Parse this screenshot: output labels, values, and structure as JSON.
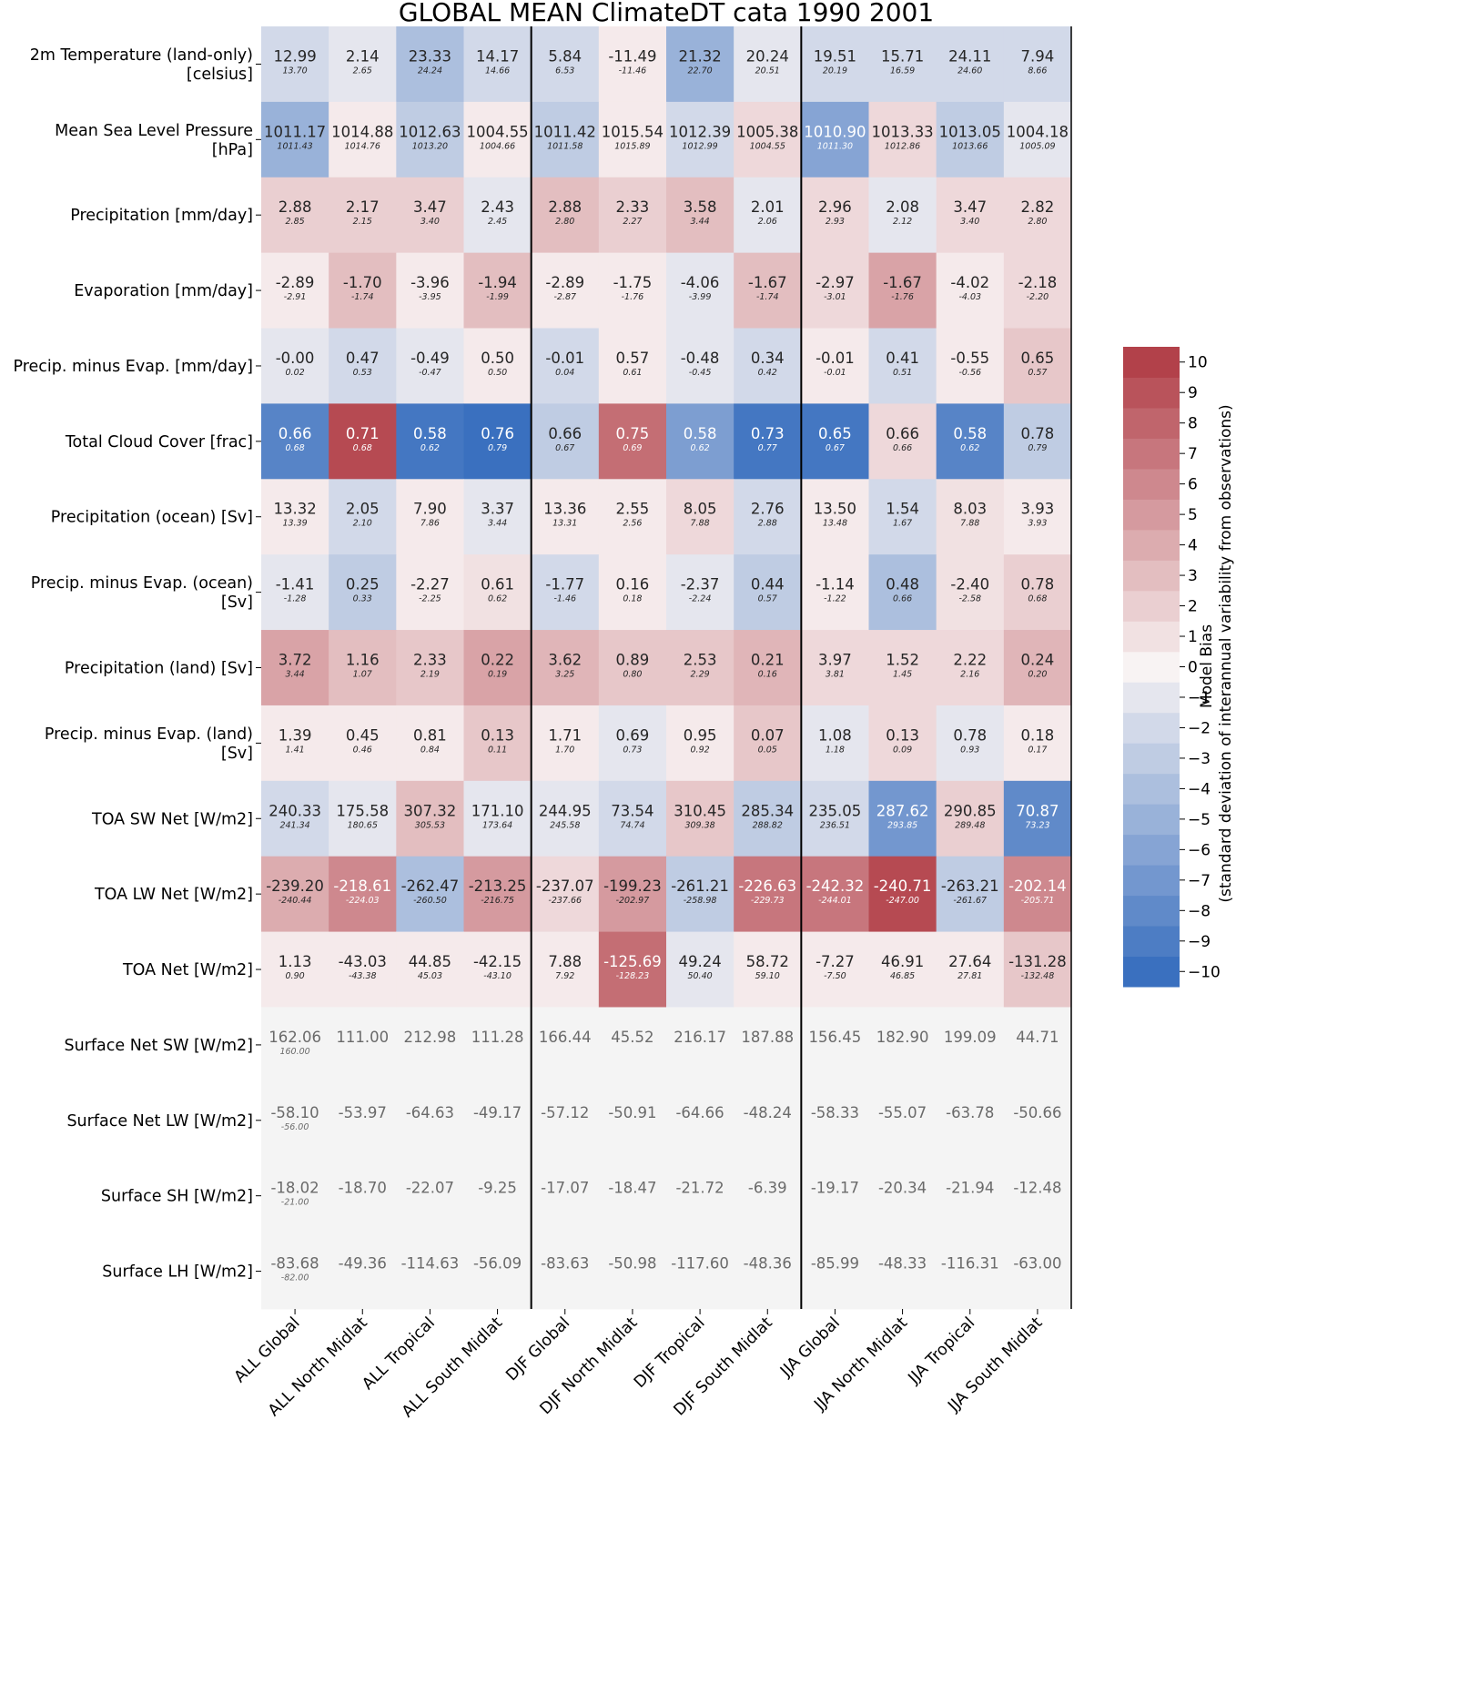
{
  "chart_data": {
    "type": "heatmap",
    "title": "GLOBAL MEAN ClimateDT cata 1990 2001",
    "columns": [
      "ALL Global",
      "ALL North Midlat",
      "ALL Tropical",
      "ALL South Midlat",
      "DJF Global",
      "DJF North Midlat",
      "DJF Tropical",
      "DJF South Midlat",
      "JJA Global",
      "JJA North Midlat",
      "JJA Tropical",
      "JJA South Midlat"
    ],
    "rows": [
      {
        "label": [
          "2m Temperature (land-only)",
          "[celsius]"
        ],
        "values": [
          "12.99",
          "2.14",
          "23.33",
          "14.17",
          "5.84",
          "-11.49",
          "21.32",
          "20.24",
          "19.51",
          "15.71",
          "24.11",
          "7.94"
        ],
        "obs": [
          "13.70",
          "2.65",
          "24.24",
          "14.66",
          "6.53",
          "-11.46",
          "22.70",
          "20.51",
          "20.19",
          "16.59",
          "24.60",
          "8.66"
        ],
        "bias": [
          -2,
          -1,
          -4,
          -2,
          -2,
          0.5,
          -5,
          -1,
          -2,
          -2,
          -2,
          -2
        ]
      },
      {
        "label": [
          "Mean Sea Level Pressure",
          "[hPa]"
        ],
        "values": [
          "1011.17",
          "1014.88",
          "1012.63",
          "1004.55",
          "1011.42",
          "1015.54",
          "1012.39",
          "1005.38",
          "1010.90",
          "1013.33",
          "1013.05",
          "1004.18"
        ],
        "obs": [
          "1011.43",
          "1014.76",
          "1013.20",
          "1004.66",
          "1011.58",
          "1015.89",
          "1012.99",
          "1004.55",
          "1011.30",
          "1012.86",
          "1013.66",
          "1005.09"
        ],
        "bias": [
          -5,
          0.5,
          -3,
          0.5,
          -3,
          0.5,
          -2,
          1.5,
          -6,
          1.5,
          -3,
          -1
        ]
      },
      {
        "label": [
          "Precipitation [mm/day]"
        ],
        "values": [
          "2.88",
          "2.17",
          "3.47",
          "2.43",
          "2.88",
          "2.33",
          "3.58",
          "2.01",
          "2.96",
          "2.08",
          "3.47",
          "2.82"
        ],
        "obs": [
          "2.85",
          "2.15",
          "3.40",
          "2.45",
          "2.80",
          "2.27",
          "3.44",
          "2.06",
          "2.93",
          "2.12",
          "3.40",
          "2.80"
        ],
        "bias": [
          2,
          2,
          2,
          -1,
          3,
          2,
          3,
          -1,
          1.5,
          -1,
          1.5,
          1.5
        ]
      },
      {
        "label": [
          "Evaporation [mm/day]"
        ],
        "values": [
          "-2.89",
          "-1.70",
          "-3.96",
          "-1.94",
          "-2.89",
          "-1.75",
          "-4.06",
          "-1.67",
          "-2.97",
          "-1.67",
          "-4.02",
          "-2.18"
        ],
        "obs": [
          "-2.91",
          "-1.74",
          "-3.95",
          "-1.99",
          "-2.87",
          "-1.76",
          "-3.99",
          "-1.74",
          "-3.01",
          "-1.76",
          "-4.03",
          "-2.20"
        ],
        "bias": [
          0.5,
          3,
          0.5,
          3,
          0.5,
          0.5,
          -1,
          3,
          1.5,
          4.5,
          0.5,
          1.5
        ]
      },
      {
        "label": [
          "Precip. minus Evap. [mm/day]"
        ],
        "values": [
          "-0.00",
          "0.47",
          "-0.49",
          "0.50",
          "-0.01",
          "0.57",
          "-0.48",
          "0.34",
          "-0.01",
          "0.41",
          "-0.55",
          "0.65"
        ],
        "obs": [
          "0.02",
          "0.53",
          "-0.47",
          "0.50",
          "0.04",
          "0.61",
          "-0.45",
          "0.42",
          "-0.01",
          "0.51",
          "-0.56",
          "0.57"
        ],
        "bias": [
          -1,
          -2,
          -1,
          0.5,
          -2,
          0.5,
          -1,
          -2,
          0.5,
          -2,
          0.5,
          2.5
        ]
      },
      {
        "label": [
          "Total Cloud Cover [frac]"
        ],
        "values": [
          "0.66",
          "0.71",
          "0.58",
          "0.76",
          "0.66",
          "0.75",
          "0.58",
          "0.73",
          "0.65",
          "0.66",
          "0.58",
          "0.78"
        ],
        "obs": [
          "0.68",
          "0.68",
          "0.62",
          "0.79",
          "0.67",
          "0.69",
          "0.62",
          "0.77",
          "0.67",
          "0.66",
          "0.62",
          "0.79"
        ],
        "bias": [
          -8.5,
          9.5,
          -9.5,
          -10,
          -3,
          7.5,
          -6.5,
          -9.5,
          -9.5,
          1.5,
          -8.5,
          -3
        ]
      },
      {
        "label": [
          "Precipitation (ocean) [Sv]"
        ],
        "values": [
          "13.32",
          "2.05",
          "7.90",
          "3.37",
          "13.36",
          "2.55",
          "8.05",
          "2.76",
          "13.50",
          "1.54",
          "8.03",
          "3.93"
        ],
        "obs": [
          "13.39",
          "2.10",
          "7.86",
          "3.44",
          "13.31",
          "2.56",
          "7.88",
          "2.88",
          "13.48",
          "1.67",
          "7.88",
          "3.93"
        ],
        "bias": [
          0.5,
          -2,
          0.5,
          -1,
          0.5,
          0.5,
          1.5,
          -2,
          0.5,
          -2,
          1,
          0.5
        ]
      },
      {
        "label": [
          "Precip. minus Evap. (ocean)",
          "[Sv]"
        ],
        "values": [
          "-1.41",
          "0.25",
          "-2.27",
          "0.61",
          "-1.77",
          "0.16",
          "-2.37",
          "0.44",
          "-1.14",
          "0.48",
          "-2.40",
          "0.78"
        ],
        "obs": [
          "-1.28",
          "0.33",
          "-2.25",
          "0.62",
          "-1.46",
          "0.18",
          "-2.24",
          "0.57",
          "-1.22",
          "0.66",
          "-2.58",
          "0.68"
        ],
        "bias": [
          -1,
          -3,
          0.5,
          1,
          -2,
          0.5,
          -1,
          -3,
          0.5,
          -4,
          1,
          2
        ]
      },
      {
        "label": [
          "Precipitation (land) [Sv]"
        ],
        "values": [
          "3.72",
          "1.16",
          "2.33",
          "0.22",
          "3.62",
          "0.89",
          "2.53",
          "0.21",
          "3.97",
          "1.52",
          "2.22",
          "0.24"
        ],
        "obs": [
          "3.44",
          "1.07",
          "2.19",
          "0.19",
          "3.25",
          "0.80",
          "2.29",
          "0.16",
          "3.81",
          "1.45",
          "2.16",
          "0.20"
        ],
        "bias": [
          4.5,
          3,
          2.5,
          4.5,
          3.5,
          2.5,
          2.5,
          3.5,
          1.5,
          1.5,
          1.5,
          3.5
        ]
      },
      {
        "label": [
          "Precip. minus Evap. (land)",
          "[Sv]"
        ],
        "values": [
          "1.39",
          "0.45",
          "0.81",
          "0.13",
          "1.71",
          "0.69",
          "0.95",
          "0.07",
          "1.08",
          "0.13",
          "0.78",
          "0.18"
        ],
        "obs": [
          "1.41",
          "0.46",
          "0.84",
          "0.11",
          "1.70",
          "0.73",
          "0.92",
          "0.05",
          "1.18",
          "0.09",
          "0.93",
          "0.17"
        ],
        "bias": [
          0.5,
          0.5,
          0.5,
          2.5,
          0.5,
          -1,
          0.5,
          2.5,
          -1,
          1.5,
          -1,
          0.5
        ]
      },
      {
        "label": [
          "TOA SW Net [W/m2]"
        ],
        "values": [
          "240.33",
          "175.58",
          "307.32",
          "171.10",
          "244.95",
          "73.54",
          "310.45",
          "285.34",
          "235.05",
          "287.62",
          "290.85",
          "70.87"
        ],
        "obs": [
          "241.34",
          "180.65",
          "305.53",
          "173.64",
          "245.58",
          "74.74",
          "309.38",
          "288.82",
          "236.51",
          "293.85",
          "289.48",
          "73.23"
        ],
        "bias": [
          -2,
          -1,
          3,
          -1,
          -1,
          -2,
          2.5,
          -3,
          -2,
          -7,
          2,
          -8
        ]
      },
      {
        "label": [
          "TOA LW Net [W/m2]"
        ],
        "values": [
          "-239.20",
          "-218.61",
          "-262.47",
          "-213.25",
          "-237.07",
          "-199.23",
          "-261.21",
          "-226.63",
          "-242.32",
          "-240.71",
          "-263.21",
          "-202.14"
        ],
        "obs": [
          "-240.44",
          "-224.03",
          "-260.50",
          "-216.75",
          "-237.66",
          "-202.97",
          "-258.98",
          "-229.73",
          "-244.01",
          "-247.00",
          "-261.67",
          "-205.71"
        ],
        "bias": [
          4,
          6,
          -4,
          5,
          1.5,
          5,
          -3,
          7,
          7,
          9.5,
          -3,
          6
        ]
      },
      {
        "label": [
          "TOA Net [W/m2]"
        ],
        "values": [
          "1.13",
          "-43.03",
          "44.85",
          "-42.15",
          "7.88",
          "-125.69",
          "49.24",
          "58.72",
          "-7.27",
          "46.91",
          "27.64",
          "-131.28"
        ],
        "obs": [
          "0.90",
          "-43.38",
          "45.03",
          "-43.10",
          "7.92",
          "-128.23",
          "50.40",
          "59.10",
          "-7.50",
          "46.85",
          "27.81",
          "-132.48"
        ],
        "bias": [
          0.5,
          0.5,
          0.5,
          0.5,
          0.5,
          7.5,
          -1,
          0.5,
          0.5,
          0.5,
          0.5,
          2.5
        ]
      },
      {
        "label": [
          "Surface Net SW [W/m2]"
        ],
        "values": [
          "162.06",
          "111.00",
          "212.98",
          "111.28",
          "166.44",
          "45.52",
          "216.17",
          "187.88",
          "156.45",
          "182.90",
          "199.09",
          "44.71"
        ],
        "obs": [
          "160.00",
          null,
          null,
          null,
          null,
          null,
          null,
          null,
          null,
          null,
          null,
          null
        ],
        "bias": [
          null,
          null,
          null,
          null,
          null,
          null,
          null,
          null,
          null,
          null,
          null,
          null
        ]
      },
      {
        "label": [
          "Surface Net LW [W/m2]"
        ],
        "values": [
          "-58.10",
          "-53.97",
          "-64.63",
          "-49.17",
          "-57.12",
          "-50.91",
          "-64.66",
          "-48.24",
          "-58.33",
          "-55.07",
          "-63.78",
          "-50.66"
        ],
        "obs": [
          "-56.00",
          null,
          null,
          null,
          null,
          null,
          null,
          null,
          null,
          null,
          null,
          null
        ],
        "bias": [
          null,
          null,
          null,
          null,
          null,
          null,
          null,
          null,
          null,
          null,
          null,
          null
        ]
      },
      {
        "label": [
          "Surface SH [W/m2]"
        ],
        "values": [
          "-18.02",
          "-18.70",
          "-22.07",
          "-9.25",
          "-17.07",
          "-18.47",
          "-21.72",
          "-6.39",
          "-19.17",
          "-20.34",
          "-21.94",
          "-12.48"
        ],
        "obs": [
          "-21.00",
          null,
          null,
          null,
          null,
          null,
          null,
          null,
          null,
          null,
          null,
          null
        ],
        "bias": [
          null,
          null,
          null,
          null,
          null,
          null,
          null,
          null,
          null,
          null,
          null,
          null
        ]
      },
      {
        "label": [
          "Surface LH [W/m2]"
        ],
        "values": [
          "-83.68",
          "-49.36",
          "-114.63",
          "-56.09",
          "-83.63",
          "-50.98",
          "-117.60",
          "-48.36",
          "-85.99",
          "-48.33",
          "-116.31",
          "-63.00"
        ],
        "obs": [
          "-82.00",
          null,
          null,
          null,
          null,
          null,
          null,
          null,
          null,
          null,
          null,
          null
        ],
        "bias": [
          null,
          null,
          null,
          null,
          null,
          null,
          null,
          null,
          null,
          null,
          null,
          null
        ]
      }
    ],
    "colorbar": {
      "label": "Model Bias",
      "sublabel": "(standard deviation of interannual variability from observations)",
      "range": [
        -10.5,
        10.5
      ],
      "ticks": [
        10,
        9,
        8,
        7,
        6,
        5,
        4,
        3,
        2,
        1,
        0,
        -1,
        -2,
        -3,
        -4,
        -5,
        -6,
        -7,
        -8,
        -9,
        -10
      ],
      "tick_labels": [
        "10",
        "9",
        "8",
        "7",
        "6",
        "5",
        "4",
        "3",
        "2",
        "1",
        "0",
        "−1",
        "−2",
        "−3",
        "−4",
        "−5",
        "−6",
        "−7",
        "−8",
        "−9",
        "−10"
      ]
    },
    "group_separators_after_columns": [
      4,
      8
    ],
    "colors": {
      "neg": "#3a70bf",
      "mid": "#f8f3f3",
      "pos": "#b2414a",
      "missing": "#f4f4f4",
      "missing_text": "#6a6a6a"
    }
  }
}
